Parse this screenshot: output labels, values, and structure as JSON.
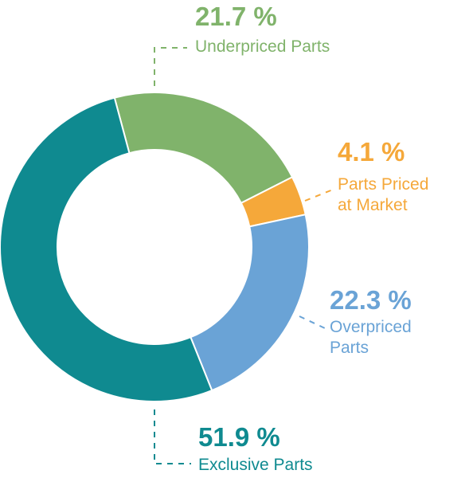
{
  "chart_data": {
    "type": "pie",
    "donut": true,
    "title": "",
    "legend": "none",
    "slices": [
      {
        "label": "Underpriced Parts",
        "value": 21.7,
        "value_text": "21.7 %",
        "color": "#80b36b"
      },
      {
        "label": "Parts Priced\nat Market",
        "value": 4.1,
        "value_text": "4.1 %",
        "color": "#f5a83a"
      },
      {
        "label": "Overpriced\nParts",
        "value": 22.3,
        "value_text": "22.3 %",
        "color": "#6aa3d6"
      },
      {
        "label": "Exclusive Parts",
        "value": 51.9,
        "value_text": "51.9 %",
        "color": "#0f8a90"
      }
    ]
  }
}
